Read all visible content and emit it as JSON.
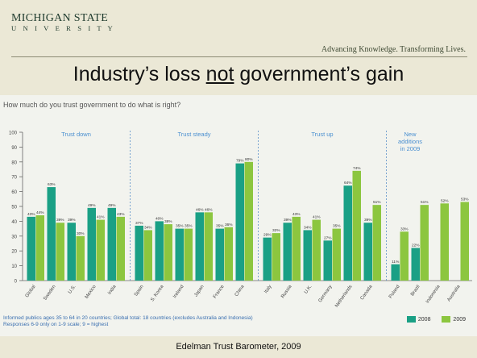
{
  "header": {
    "logo_line1": "MICHIGAN STATE",
    "logo_line2": "U N I V E R S I T Y",
    "tagline": "Advancing Knowledge. Transforming Lives.",
    "title_pre": "Industry’s loss ",
    "title_underlined": "not",
    "title_post": " government’s gain"
  },
  "footer": {
    "source": "Edelman Trust Barometer, 2009"
  },
  "colors": {
    "series_2008": "#1aa085",
    "series_2009": "#8cc63f",
    "section_label": "#4a8fd0",
    "background": "#ebe8d6"
  },
  "chart_data": {
    "type": "bar",
    "title": "How much do you trust government to do what is right?",
    "ylim": [
      0,
      100
    ],
    "y_ticks": [
      0,
      10,
      20,
      30,
      40,
      50,
      60,
      70,
      80,
      90,
      100
    ],
    "grid": false,
    "legend_position": "bottom-right",
    "footnote_line1": "Informed publics ages 35 to 64 in 20 countries; Global total: 18 countries (excludes Australia and Indonesia)",
    "footnote_line2": "Responses 6-9 only on 1-9 scale; 9 = highest",
    "sections": [
      {
        "label": "Trust down",
        "first": 0,
        "last": 4
      },
      {
        "label": "Trust steady",
        "first": 5,
        "last": 10
      },
      {
        "label": "Trust up",
        "first": 11,
        "last": 16
      },
      {
        "label": "New additions in 2009",
        "label_lines": [
          "New",
          "additions",
          "in 2009"
        ],
        "first": 17,
        "last": 18
      }
    ],
    "categories": [
      "Global",
      "Sweden",
      "U.S.",
      "Mexico",
      "India",
      "Spain",
      "S. Korea",
      "Ireland",
      "Japan",
      "France",
      "China",
      "Italy",
      "Russia",
      "U.K.",
      "Germany",
      "Netherlands",
      "Canada",
      "Poland",
      "Brazil",
      "Indonesia",
      "Australia"
    ],
    "series": [
      {
        "name": "2008",
        "values": [
          43,
          63,
          39,
          49,
          49,
          37,
          40,
          35,
          46,
          35,
          79,
          29,
          39,
          34,
          27,
          64,
          39,
          11,
          22,
          null,
          null
        ]
      },
      {
        "name": "2009",
        "values": [
          44,
          39,
          30,
          41,
          43,
          34,
          38,
          35,
          46,
          36,
          80,
          32,
          43,
          41,
          35,
          74,
          51,
          33,
          51,
          52,
          53
        ]
      }
    ],
    "value_labels_2008": [
      "43%",
      "63%",
      "39%",
      "49%",
      "49%",
      "37%",
      "40%",
      "35%",
      "46%",
      "35%",
      "79%",
      "29%",
      "39%",
      "34%",
      "27%",
      "64%",
      "39%",
      "11%",
      "22%",
      "",
      ""
    ],
    "value_labels_2009": [
      "44%",
      "39%",
      "30%",
      "41%",
      "43%",
      "34%",
      "38%",
      "35%",
      "46%",
      "36%",
      "80%",
      "32%",
      "43%",
      "41%",
      "35%",
      "74%",
      "51%",
      "33%",
      "51%",
      "52%",
      "53%"
    ]
  }
}
